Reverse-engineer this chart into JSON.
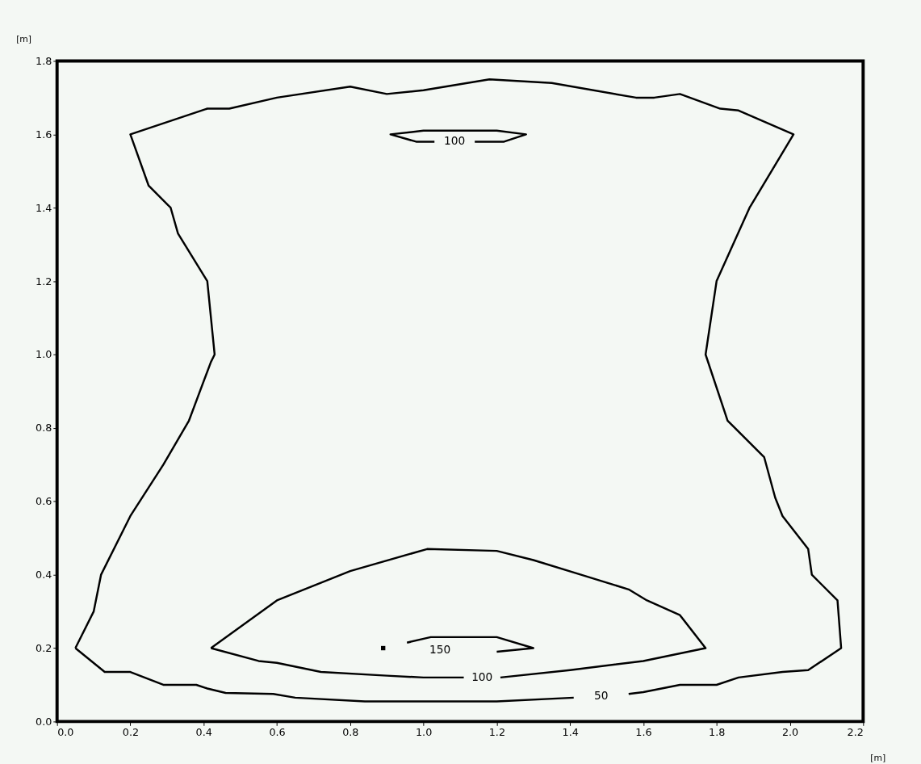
{
  "chart_data": {
    "type": "line",
    "xlabel": "[m]",
    "ylabel": "[m]",
    "xlim": [
      0,
      2.2
    ],
    "ylim": [
      0,
      1.8
    ],
    "xticks": [
      {
        "value": 0,
        "label": "0.0"
      },
      0.2,
      0.4,
      0.6,
      0.8,
      {
        "value": 1,
        "label": "1.0"
      },
      1.2,
      1.4,
      1.6,
      1.8,
      {
        "value": 2,
        "label": "2.0"
      },
      2.2
    ],
    "yticks": [
      {
        "value": 0,
        "label": "0.0"
      },
      0.2,
      0.4,
      0.6,
      0.8,
      {
        "value": 1,
        "label": "1.0"
      },
      1.2,
      1.4,
      1.6,
      1.8
    ],
    "grid": false,
    "marker": "none",
    "line_style": "solid",
    "series": [
      {
        "name": "50",
        "color": "#000000",
        "x": [
          0.05,
          0.1,
          0.12,
          0.2,
          0.29,
          0.36,
          0.42,
          0.43,
          0.41,
          0.33,
          0.31,
          0.25,
          0.2,
          0.41,
          0.47,
          0.6,
          0.8,
          0.9,
          1.0,
          1.18,
          1.35,
          1.58,
          1.63,
          1.7,
          1.81,
          1.86,
          2.01,
          1.89,
          1.8,
          1.77,
          1.83,
          1.85,
          1.93,
          1.96,
          1.98,
          2.05,
          2.06,
          2.13,
          2.14,
          2.05,
          1.98,
          1.86,
          1.8,
          1.7,
          1.6,
          1.56,
          1.52,
          1.41,
          1.2,
          0.84,
          0.65,
          0.59,
          0.46,
          0.41,
          0.38,
          0.29,
          0.2,
          0.13,
          0.05
        ],
        "values": [
          0.2,
          0.3,
          0.4,
          0.56,
          0.7,
          0.82,
          0.98,
          1.0,
          1.2,
          1.33,
          1.4,
          1.46,
          1.6,
          1.67,
          1.67,
          1.7,
          1.73,
          1.71,
          1.72,
          1.75,
          1.74,
          1.7,
          1.7,
          1.71,
          1.67,
          1.665,
          1.6,
          1.4,
          1.2,
          1.0,
          0.82,
          0.8,
          0.72,
          0.61,
          0.56,
          0.47,
          0.4,
          0.33,
          0.2,
          0.14,
          0.135,
          0.12,
          0.1,
          0.1,
          0.08,
          0.075,
          null,
          0.065,
          0.055,
          0.055,
          0.065,
          0.075,
          0.078,
          0.09,
          0.1,
          0.1,
          0.135,
          0.135,
          0.2
        ]
      },
      {
        "name": "100",
        "color": "#000000",
        "x": [
          0.42,
          0.6,
          0.8,
          1.01,
          1.2,
          1.3,
          1.43,
          1.56,
          1.61,
          1.7,
          1.77,
          1.6,
          1.4,
          1.21,
          1.16,
          1.11,
          1.0,
          0.9,
          0.72,
          0.6,
          0.55,
          0.42
        ],
        "values": [
          0.2,
          0.33,
          0.41,
          0.47,
          0.465,
          0.44,
          0.4,
          0.36,
          0.33,
          0.29,
          0.2,
          0.165,
          0.14,
          0.12,
          null,
          0.12,
          0.12,
          0.125,
          0.135,
          0.16,
          0.165,
          0.2
        ]
      },
      {
        "name": "150",
        "color": "#000000",
        "x": [
          0.89,
          0.97,
          1.2,
          1.3,
          1.2,
          1.02,
          0.955
        ],
        "values": [
          0.2,
          null,
          0.19,
          0.2,
          0.23,
          0.23,
          0.215
        ]
      },
      {
        "name": "100",
        "color": "#000000",
        "x": [
          null,
          1.14,
          1.22,
          1.28,
          1.2,
          1.0,
          0.91,
          0.98,
          1.03
        ],
        "values": [
          null,
          1.58,
          1.58,
          1.6,
          1.61,
          1.61,
          1.6,
          1.58,
          1.58
        ]
      }
    ]
  }
}
